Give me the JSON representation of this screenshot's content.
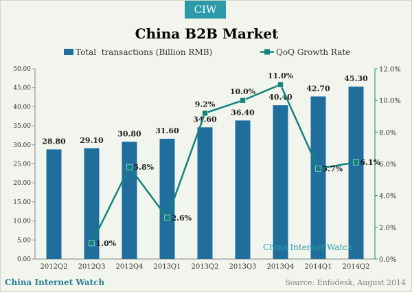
{
  "brand": {
    "logo_text": "CIW",
    "footer_left": "China Internet Watch",
    "source": "Source: Enfodesk, August 2014"
  },
  "colors": {
    "bar": "#1f6e9c",
    "line": "#12837c",
    "background": "#f2f5ee",
    "logo": "#2c9aa8"
  },
  "chart_data": {
    "type": "bar",
    "title": "China B2B Market",
    "watermark": "China Internet Watch",
    "categories": [
      "2012Q2",
      "2012Q3",
      "2012Q4",
      "2013Q1",
      "2013Q2",
      "2013Q3",
      "2013Q4",
      "2014Q1",
      "2014Q2"
    ],
    "series": [
      {
        "name": "Total  transactions (Billion RMB)",
        "type": "bar",
        "axis": "left",
        "values": [
          28.8,
          29.1,
          30.8,
          31.6,
          34.6,
          36.4,
          40.4,
          42.7,
          45.3
        ],
        "labels": [
          "28.80",
          "29.10",
          "30.80",
          "31.60",
          "34.60",
          "36.40",
          "40.40",
          "42.70",
          "45.30"
        ]
      },
      {
        "name": "QoQ Growth Rate",
        "type": "line",
        "axis": "right",
        "values": [
          null,
          1.0,
          5.8,
          2.6,
          9.2,
          10.0,
          11.0,
          5.7,
          6.1
        ],
        "labels": [
          null,
          "1.0%",
          "5.8%",
          "2.6%",
          "9.2%",
          "10.0%",
          "11.0%",
          "5.7%",
          "6.1%"
        ]
      }
    ],
    "y_left": {
      "min": 0,
      "max": 50,
      "ticks": [
        "0.00",
        "5.00",
        "10.00",
        "15.00",
        "20.00",
        "25.00",
        "30.00",
        "35.00",
        "40.00",
        "45.00",
        "50.00"
      ]
    },
    "y_right": {
      "min": 0,
      "max": 12,
      "ticks": [
        "0.0%",
        "2.0%",
        "4.0%",
        "6.0%",
        "8.0%",
        "10.0%",
        "12.0%"
      ]
    },
    "grid": false,
    "legend": "top"
  }
}
